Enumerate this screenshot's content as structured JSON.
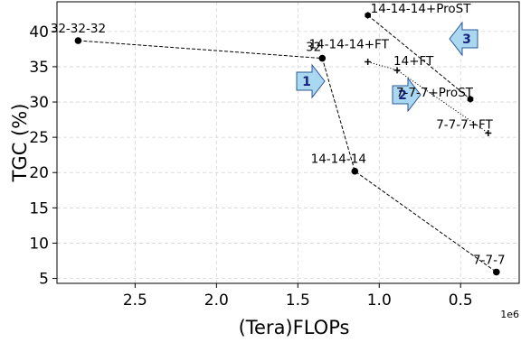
{
  "chart_data": {
    "type": "scatter",
    "title": "",
    "xlabel": "(Tera)FLOPs",
    "ylabel": "TGC (%)",
    "x_offset_label": "1e6",
    "x_inverted": true,
    "xlim": [
      2.98,
      0.14
    ],
    "ylim": [
      4.3,
      44.2
    ],
    "xticks": [
      2.5,
      2.0,
      1.5,
      1.0,
      0.5
    ],
    "xtick_labels": [
      "2.5",
      "2.0",
      "1.5",
      "1.0",
      "0.5"
    ],
    "yticks": [
      5,
      10,
      15,
      20,
      25,
      30,
      35,
      40
    ],
    "ytick_labels": [
      "5",
      "10",
      "15",
      "20",
      "25",
      "30",
      "35",
      "40"
    ],
    "grid": true,
    "colors": {
      "points": "#000000",
      "arrow_fill": "#a9d8f0",
      "arrow_stroke": "#2b5797",
      "arrow_text": "#1a237e"
    },
    "series": [
      {
        "marker": "circle",
        "line": "dashed",
        "points": [
          {
            "x": 2.85,
            "y": 38.7,
            "label": "32-32-32"
          },
          {
            "x": 1.35,
            "y": 36.2,
            "label": "32"
          },
          {
            "x": 1.15,
            "y": 20.2,
            "label": "14-14-14"
          },
          {
            "x": 0.28,
            "y": 5.9,
            "label": "7-7-7"
          }
        ]
      },
      {
        "marker": "hexagon",
        "line": "dashed",
        "points": [
          {
            "x": 1.07,
            "y": 42.3,
            "label": "14-14-14+ProST"
          },
          {
            "x": 0.44,
            "y": 30.4,
            "label": "7-7-7+ProST"
          }
        ]
      },
      {
        "marker": "plus",
        "line": "dotted",
        "points": [
          {
            "x": 1.07,
            "y": 35.7,
            "label": "14-14-14+FT"
          },
          {
            "x": 0.89,
            "y": 34.5,
            "label": "14+FT"
          },
          {
            "x": 0.33,
            "y": 25.6,
            "label": "7-7-7+FT"
          }
        ]
      }
    ],
    "annotations": [
      {
        "text": "1",
        "direction": "right"
      },
      {
        "text": "2",
        "direction": "right"
      },
      {
        "text": "3",
        "direction": "left"
      }
    ]
  }
}
